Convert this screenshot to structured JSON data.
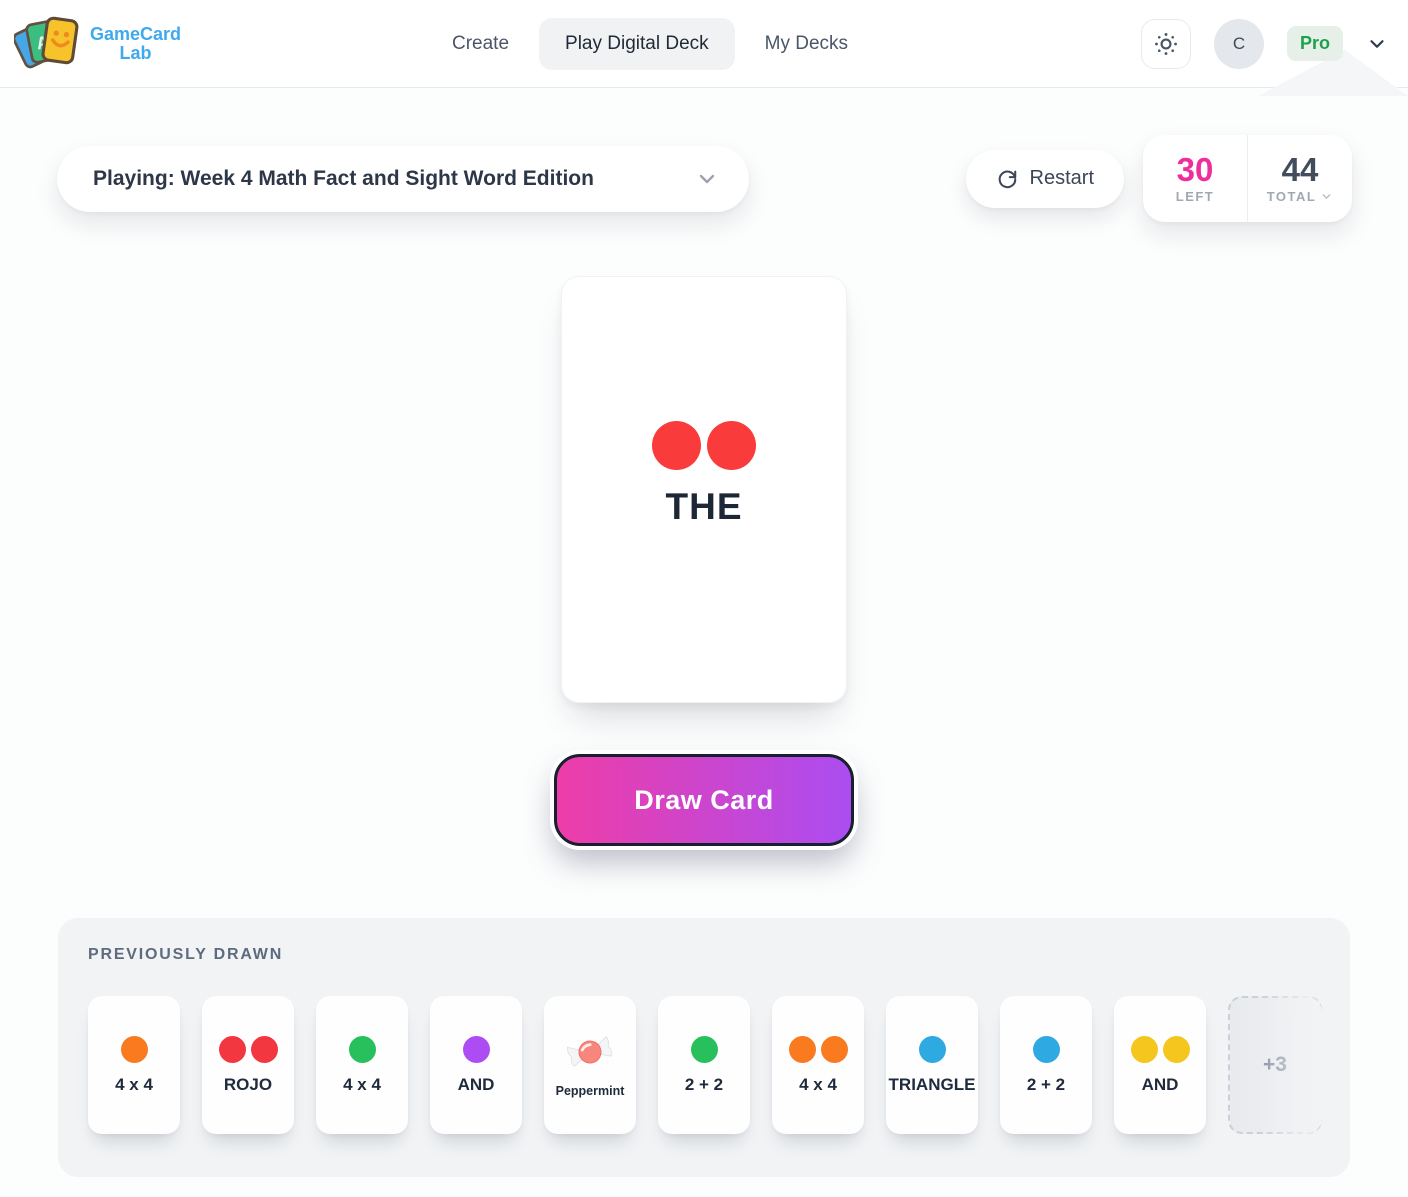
{
  "header": {
    "logo_line1": "GameCard",
    "logo_line2": "Lab",
    "nav": [
      {
        "label": "Create",
        "active": false
      },
      {
        "label": "Play Digital Deck",
        "active": true
      },
      {
        "label": "My Decks",
        "active": false
      }
    ],
    "theme_icon": "sun-icon",
    "avatar_initial": "C",
    "pro_badge": "Pro"
  },
  "toolbar": {
    "deck_select_label": "Playing: Week 4 Math Fact and Sight Word Edition",
    "restart_label": "Restart",
    "counter": {
      "left_value": "30",
      "left_label": "LEFT",
      "total_value": "44",
      "total_label": "TOTAL"
    }
  },
  "current_card": {
    "word": "THE",
    "dots": 2,
    "dot_color": "#F93B3B"
  },
  "draw_button_label": "Draw Card",
  "previously_drawn": {
    "title": "PREVIOUSLY DRAWN",
    "cards": [
      {
        "label": "4 x 4",
        "dots": 1,
        "dot_color": "#F97A1F"
      },
      {
        "label": "ROJO",
        "dots": 2,
        "dot_color": "#F23740"
      },
      {
        "label": "4 x 4",
        "dots": 1,
        "dot_color": "#27C05D"
      },
      {
        "label": "AND",
        "dots": 1,
        "dot_color": "#AE4CF4"
      },
      {
        "label": "Peppermint",
        "icon": "candy-icon"
      },
      {
        "label": "2 + 2",
        "dots": 1,
        "dot_color": "#27C05D"
      },
      {
        "label": "4 x 4",
        "dots": 2,
        "dot_color": "#F97A1F"
      },
      {
        "label": "TRIANGLE",
        "dots": 1,
        "dot_color": "#2FA9E2"
      },
      {
        "label": "2 + 2",
        "dots": 1,
        "dot_color": "#2FA9E2"
      },
      {
        "label": "AND",
        "dots": 2,
        "dot_color": "#F5C61E"
      },
      {
        "label": "+3",
        "type": "more"
      }
    ]
  },
  "colors": {
    "accent_pink": "#EE2E9C",
    "draw_gradient_start": "#EE3DA8",
    "draw_gradient_end": "#AB4DF1",
    "pro_green": "#1BA24A",
    "logo_blue": "#3FA9F0",
    "history_bg": "#F1F3F5"
  }
}
